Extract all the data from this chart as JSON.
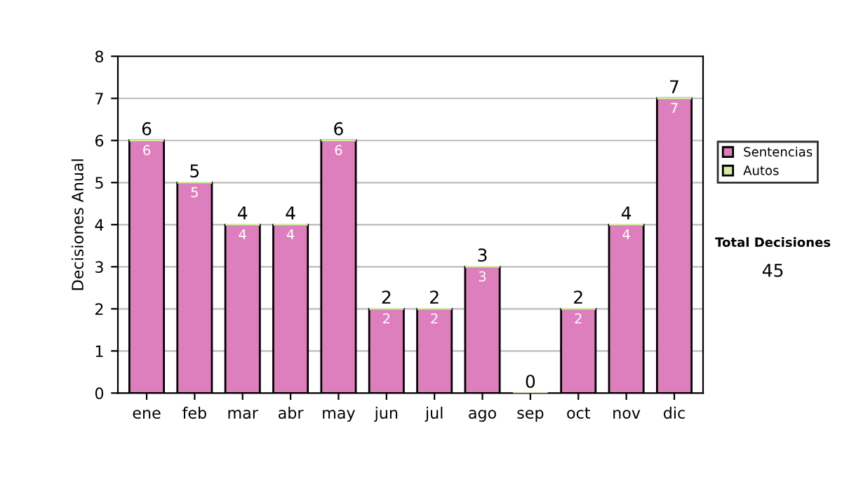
{
  "chart_data": {
    "type": "bar",
    "stacked": true,
    "ylabel": "Decisiones Anual",
    "categories": [
      "ene",
      "feb",
      "mar",
      "abr",
      "may",
      "jun",
      "jul",
      "ago",
      "sep",
      "oct",
      "nov",
      "dic"
    ],
    "series": [
      {
        "name": "Sentencias",
        "color": "#dd7fbd",
        "values": [
          6,
          5,
          4,
          4,
          6,
          2,
          2,
          3,
          0,
          2,
          4,
          7
        ],
        "value_labels": [
          "6",
          "5",
          "4",
          "4",
          "6",
          "2",
          "2",
          "3",
          null,
          "2",
          "4",
          "7"
        ]
      },
      {
        "name": "Autos",
        "color": "#d8eca8",
        "values": [
          0,
          0,
          0,
          0,
          0,
          0,
          0,
          0,
          0,
          0,
          0,
          0
        ]
      }
    ],
    "totals": [
      "6",
      "5",
      "4",
      "4",
      "6",
      "2",
      "2",
      "3",
      "0",
      "2",
      "4",
      "7"
    ],
    "ylim": [
      0,
      8
    ],
    "yticks": [
      0,
      1,
      2,
      3,
      4,
      5,
      6,
      7,
      8
    ],
    "grid": "y",
    "legend": "right",
    "annotations": [
      "Total Decisiones",
      "45"
    ]
  }
}
